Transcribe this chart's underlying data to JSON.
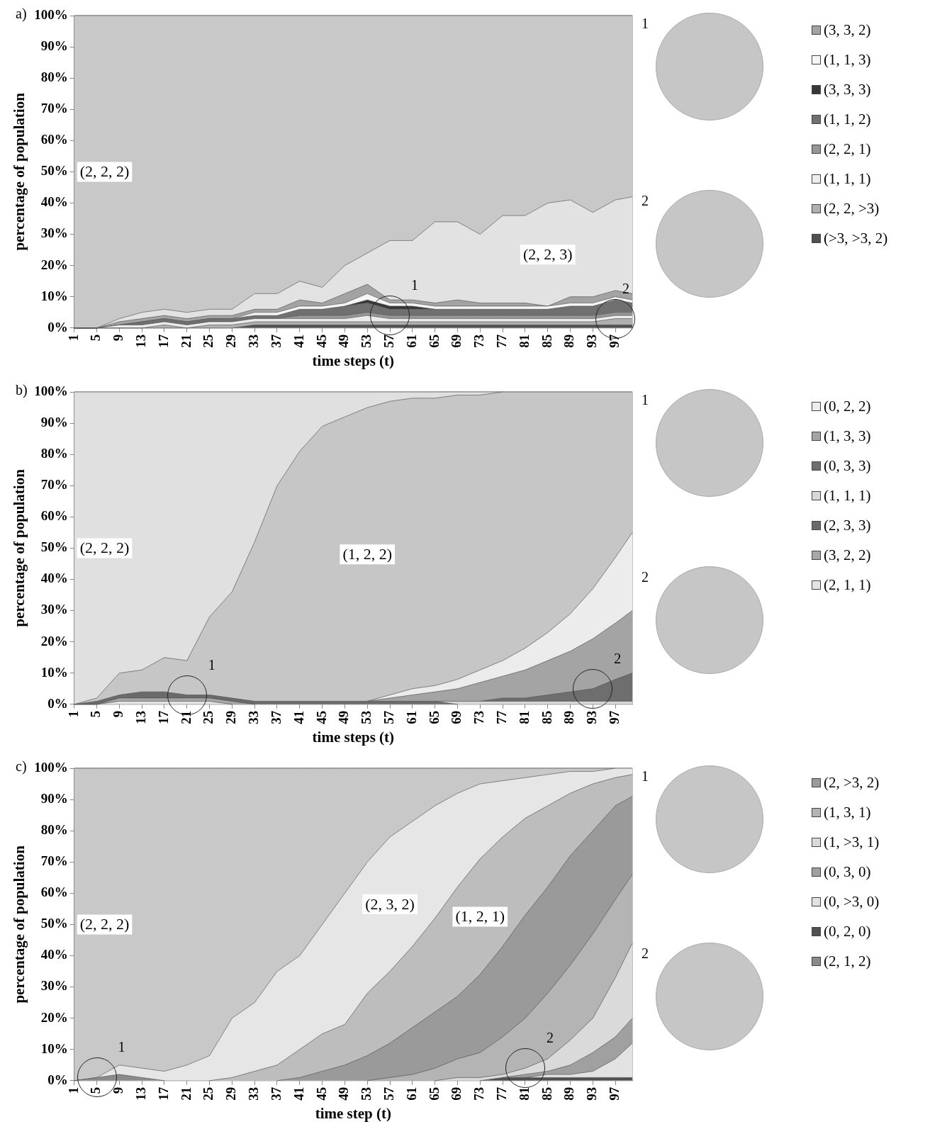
{
  "chart_data": [
    {
      "type": "area",
      "title": "a)",
      "xlabel": "time steps (t)",
      "ylabel": "percentage of population",
      "stacked": true,
      "legend": "right",
      "x": [
        1,
        5,
        9,
        13,
        17,
        21,
        25,
        29,
        33,
        37,
        41,
        45,
        49,
        53,
        57,
        61,
        65,
        69,
        73,
        77,
        81,
        85,
        89,
        93,
        97,
        100
      ],
      "xlim": [
        1,
        100
      ],
      "xticks": [
        1,
        5,
        9,
        13,
        17,
        21,
        25,
        29,
        33,
        37,
        41,
        45,
        49,
        53,
        57,
        61,
        65,
        69,
        73,
        77,
        81,
        85,
        89,
        93,
        97
      ],
      "ylim": [
        0,
        100
      ],
      "yticks": [
        {
          "value": 0,
          "label": "0%"
        },
        {
          "value": 10,
          "label": "10%"
        },
        {
          "value": 20,
          "label": "20%"
        },
        {
          "value": 30,
          "label": "30%"
        },
        {
          "value": 40,
          "label": "40%"
        },
        {
          "value": 50,
          "label": "50%"
        },
        {
          "value": 60,
          "label": "60%"
        },
        {
          "value": 70,
          "label": "70%"
        },
        {
          "value": 80,
          "label": "80%"
        },
        {
          "value": 90,
          "label": "90%"
        },
        {
          "value": 100,
          "label": "100%"
        }
      ],
      "annotations": [
        {
          "text": "1",
          "x": 57,
          "y": 4
        },
        {
          "text": "2",
          "x": 97,
          "y": 3
        }
      ],
      "series": [
        {
          "name": "(>3, >3, 2)",
          "color": "#505050",
          "values": [
            0,
            0,
            0,
            0,
            0,
            0,
            0,
            0,
            1,
            1,
            1,
            1,
            1,
            1,
            1,
            1,
            1,
            1,
            1,
            1,
            1,
            1,
            1,
            1,
            1,
            1
          ]
        },
        {
          "name": "(2, 2, >3)",
          "color": "#b0b0b0",
          "values": [
            0,
            0,
            0,
            0,
            1,
            0,
            1,
            1,
            1,
            1,
            1,
            1,
            1,
            1,
            1,
            1,
            1,
            1,
            1,
            1,
            1,
            1,
            1,
            1,
            2,
            2
          ]
        },
        {
          "name": "(1, 1, 1)",
          "color": "#ececec",
          "values": [
            0,
            0,
            1,
            1,
            1,
            1,
            1,
            1,
            1,
            1,
            1,
            1,
            1,
            2,
            1,
            1,
            1,
            1,
            1,
            1,
            1,
            1,
            1,
            1,
            1,
            1
          ]
        },
        {
          "name": "(2, 2, 1)",
          "color": "#969696",
          "values": [
            0,
            0,
            0,
            0,
            0,
            0,
            0,
            0,
            0,
            0,
            1,
            1,
            1,
            1,
            1,
            1,
            1,
            1,
            1,
            1,
            1,
            1,
            1,
            1,
            1,
            1
          ]
        },
        {
          "name": "(1, 1, 2)",
          "color": "#707070",
          "values": [
            0,
            0,
            0,
            1,
            1,
            1,
            1,
            1,
            1,
            1,
            2,
            2,
            3,
            3,
            2,
            2,
            2,
            2,
            2,
            2,
            2,
            2,
            3,
            3,
            4,
            3
          ]
        },
        {
          "name": "(3, 3, 3)",
          "color": "#383838",
          "values": [
            null,
            null,
            null,
            null,
            null,
            null,
            null,
            null,
            null,
            null,
            null,
            null,
            0,
            1,
            1,
            1,
            0,
            null,
            null,
            null,
            null,
            null,
            null,
            null,
            null,
            null
          ]
        },
        {
          "name": "(1, 1, 3)",
          "color": "#f6f6f6",
          "values": [
            0,
            0,
            0,
            0,
            0,
            0,
            0,
            0,
            1,
            1,
            1,
            1,
            1,
            2,
            1,
            1,
            1,
            1,
            1,
            1,
            1,
            1,
            1,
            1,
            1,
            1
          ]
        },
        {
          "name": "(3, 3, 2)",
          "color": "#a3a3a3",
          "values": [
            0,
            0,
            1,
            1,
            1,
            1,
            1,
            1,
            1,
            1,
            2,
            1,
            3,
            3,
            1,
            1,
            1,
            2,
            1,
            1,
            1,
            0,
            2,
            2,
            2,
            2
          ]
        },
        {
          "name": "(2, 2, 3)",
          "color": "#e2e2e2",
          "values": [
            0,
            0,
            1,
            2,
            2,
            2,
            2,
            2,
            5,
            5,
            6,
            5,
            9,
            10,
            19,
            19,
            26,
            25,
            22,
            28,
            28,
            33,
            31,
            27,
            29,
            31
          ]
        },
        {
          "name": "(2, 2, 2)",
          "color": "#c8c8c8",
          "values": [
            100,
            100,
            97,
            95,
            94,
            95,
            94,
            94,
            89,
            89,
            85,
            87,
            80,
            76,
            72,
            72,
            66,
            66,
            70,
            64,
            64,
            60,
            59,
            63,
            59,
            58
          ]
        }
      ]
    },
    {
      "type": "area",
      "title": "b)",
      "xlabel": "time steps (t)",
      "ylabel": "percentage of population",
      "stacked": true,
      "legend": "right",
      "x": [
        1,
        5,
        9,
        13,
        17,
        21,
        25,
        29,
        33,
        37,
        41,
        45,
        49,
        53,
        57,
        61,
        65,
        69,
        73,
        77,
        81,
        85,
        89,
        93,
        97,
        100
      ],
      "xlim": [
        1,
        100
      ],
      "xticks": [
        1,
        5,
        9,
        13,
        17,
        21,
        25,
        29,
        33,
        37,
        41,
        45,
        49,
        53,
        57,
        61,
        65,
        69,
        73,
        77,
        81,
        85,
        89,
        93,
        97
      ],
      "ylim": [
        0,
        100
      ],
      "yticks": [
        {
          "value": 0,
          "label": "0%"
        },
        {
          "value": 10,
          "label": "10%"
        },
        {
          "value": 20,
          "label": "20%"
        },
        {
          "value": 30,
          "label": "30%"
        },
        {
          "value": 40,
          "label": "40%"
        },
        {
          "value": 50,
          "label": "50%"
        },
        {
          "value": 60,
          "label": "60%"
        },
        {
          "value": 70,
          "label": "70%"
        },
        {
          "value": 80,
          "label": "80%"
        },
        {
          "value": 90,
          "label": "90%"
        },
        {
          "value": 100,
          "label": "100%"
        }
      ],
      "annotations": [
        {
          "text": "1",
          "x": 21,
          "y": 3
        },
        {
          "text": "2",
          "x": 93,
          "y": 5
        }
      ],
      "series": [
        {
          "name": "(2, 1, 1)",
          "color": "#e4e4e4",
          "values": [
            0,
            0,
            1,
            1,
            1,
            1,
            1,
            0,
            null,
            null,
            null,
            null,
            null,
            null,
            null,
            null,
            null,
            null,
            null,
            null,
            null,
            null,
            null,
            null,
            null,
            null
          ]
        },
        {
          "name": "(3, 2, 2)",
          "color": "#a8a8a8",
          "values": [
            0,
            0,
            1,
            1,
            1,
            1,
            1,
            1,
            0,
            null,
            null,
            null,
            null,
            null,
            null,
            null,
            null,
            null,
            null,
            null,
            null,
            null,
            null,
            null,
            null,
            null
          ]
        },
        {
          "name": "(2, 3, 3)",
          "color": "#6a6a6a",
          "values": [
            0,
            1,
            1,
            2,
            2,
            1,
            1,
            1,
            1,
            1,
            1,
            1,
            1,
            1,
            1,
            1,
            1,
            0,
            null,
            null,
            null,
            null,
            null,
            null,
            null,
            null
          ]
        },
        {
          "name": "(1, 1, 1)",
          "color": "#d8d8d8",
          "values": [
            null,
            null,
            null,
            null,
            null,
            null,
            null,
            null,
            null,
            null,
            null,
            null,
            null,
            null,
            null,
            null,
            0,
            1,
            1,
            1,
            1,
            1,
            1,
            1,
            1,
            1
          ]
        },
        {
          "name": "(0, 3, 3)",
          "color": "#6e6e6e",
          "values": [
            null,
            null,
            null,
            null,
            null,
            null,
            null,
            null,
            null,
            null,
            null,
            null,
            null,
            null,
            null,
            null,
            null,
            null,
            0,
            1,
            1,
            2,
            3,
            4,
            7,
            9
          ]
        },
        {
          "name": "(1, 3, 3)",
          "color": "#a4a4a4",
          "values": [
            null,
            null,
            null,
            null,
            null,
            null,
            null,
            null,
            null,
            null,
            null,
            null,
            null,
            0,
            1,
            2,
            3,
            4,
            6,
            7,
            9,
            11,
            13,
            16,
            18,
            20
          ]
        },
        {
          "name": "(0, 2, 2)",
          "color": "#ececec",
          "values": [
            null,
            null,
            null,
            null,
            null,
            null,
            null,
            null,
            null,
            null,
            null,
            null,
            null,
            0,
            1,
            2,
            2,
            3,
            4,
            5,
            7,
            9,
            12,
            16,
            21,
            25
          ]
        },
        {
          "name": "(1, 2, 2)",
          "color": "#c6c6c6",
          "values": [
            0,
            1,
            7,
            7,
            11,
            11,
            25,
            34,
            51,
            69,
            80,
            88,
            91,
            94,
            94,
            93,
            92,
            91,
            88,
            86,
            82,
            77,
            71,
            63,
            53,
            45
          ]
        },
        {
          "name": "(2, 2, 2)",
          "color": "#e0e0e0",
          "values": [
            100,
            98,
            90,
            89,
            85,
            86,
            72,
            64,
            48,
            30,
            19,
            11,
            8,
            5,
            3,
            2,
            2,
            1,
            1,
            0,
            null,
            null,
            null,
            null,
            null,
            null
          ]
        }
      ]
    },
    {
      "type": "area",
      "title": "c)",
      "xlabel": "time step (t)",
      "ylabel": "percentage of population",
      "stacked": true,
      "legend": "right",
      "x": [
        1,
        5,
        9,
        13,
        17,
        21,
        25,
        29,
        33,
        37,
        41,
        45,
        49,
        53,
        57,
        61,
        65,
        69,
        73,
        77,
        81,
        85,
        89,
        93,
        97,
        100
      ],
      "xlim": [
        1,
        100
      ],
      "xticks": [
        1,
        5,
        9,
        13,
        17,
        21,
        25,
        29,
        33,
        37,
        41,
        45,
        49,
        53,
        57,
        61,
        65,
        69,
        73,
        77,
        81,
        85,
        89,
        93,
        97
      ],
      "ylim": [
        0,
        100
      ],
      "yticks": [
        {
          "value": 0,
          "label": "0%"
        },
        {
          "value": 10,
          "label": "10%"
        },
        {
          "value": 20,
          "label": "20%"
        },
        {
          "value": 30,
          "label": "30%"
        },
        {
          "value": 40,
          "label": "40%"
        },
        {
          "value": 50,
          "label": "50%"
        },
        {
          "value": 60,
          "label": "60%"
        },
        {
          "value": 70,
          "label": "70%"
        },
        {
          "value": 80,
          "label": "80%"
        },
        {
          "value": 90,
          "label": "90%"
        },
        {
          "value": 100,
          "label": "100%"
        }
      ],
      "annotations": [
        {
          "text": "1",
          "x": 5,
          "y": 1
        },
        {
          "text": "2",
          "x": 81,
          "y": 4
        }
      ],
      "series": [
        {
          "name": "(2, 1, 2)",
          "color": "#8a8a8a",
          "values": [
            0,
            1,
            2,
            1,
            0,
            null,
            null,
            null,
            null,
            null,
            null,
            null,
            null,
            null,
            null,
            null,
            null,
            null,
            null,
            null,
            null,
            null,
            null,
            null,
            null,
            null
          ]
        },
        {
          "name": "(0, 2, 0)",
          "color": "#505050",
          "values": [
            null,
            null,
            null,
            null,
            null,
            null,
            null,
            null,
            null,
            null,
            null,
            null,
            null,
            null,
            null,
            null,
            null,
            null,
            0,
            1,
            1,
            1,
            1,
            1,
            1,
            1
          ]
        },
        {
          "name": "(0, >3, 0)",
          "color": "#e2e2e2",
          "values": [
            null,
            null,
            null,
            null,
            null,
            null,
            null,
            null,
            null,
            null,
            null,
            null,
            null,
            null,
            null,
            null,
            null,
            null,
            null,
            null,
            0,
            1,
            1,
            2,
            6,
            11
          ]
        },
        {
          "name": "(0, 3, 0)",
          "color": "#a0a0a0",
          "values": [
            null,
            null,
            null,
            null,
            null,
            null,
            null,
            null,
            null,
            null,
            null,
            null,
            null,
            null,
            null,
            null,
            null,
            null,
            null,
            0,
            1,
            1,
            3,
            6,
            7,
            8
          ]
        },
        {
          "name": "(1, >3, 1)",
          "color": "#dadada",
          "values": [
            null,
            null,
            null,
            null,
            null,
            null,
            null,
            null,
            null,
            null,
            null,
            null,
            null,
            null,
            null,
            null,
            0,
            1,
            1,
            1,
            2,
            4,
            8,
            11,
            19,
            24
          ]
        },
        {
          "name": "(1, 3, 1)",
          "color": "#b4b4b4",
          "values": [
            null,
            null,
            null,
            null,
            null,
            null,
            null,
            null,
            null,
            null,
            null,
            null,
            null,
            0,
            1,
            2,
            4,
            6,
            8,
            12,
            16,
            21,
            24,
            27,
            25,
            22
          ]
        },
        {
          "name": "(2, >3, 2)",
          "color": "#9a9a9a",
          "values": [
            null,
            null,
            null,
            null,
            null,
            null,
            null,
            null,
            null,
            0,
            1,
            3,
            5,
            8,
            11,
            15,
            18,
            20,
            25,
            29,
            33,
            34,
            35,
            33,
            30,
            25
          ]
        },
        {
          "name": "(1, 2, 1)",
          "color": "#bdbdbd",
          "values": [
            null,
            null,
            null,
            null,
            null,
            null,
            0,
            1,
            3,
            5,
            9,
            12,
            13,
            20,
            23,
            26,
            30,
            35,
            37,
            35,
            31,
            26,
            20,
            15,
            9,
            7
          ]
        },
        {
          "name": "(2, 3, 2)",
          "color": "#e6e6e6",
          "values": [
            0,
            0,
            3,
            3,
            3,
            5,
            8,
            19,
            22,
            30,
            30,
            35,
            42,
            42,
            43,
            40,
            36,
            30,
            24,
            18,
            13,
            10,
            7,
            4,
            3,
            2
          ]
        },
        {
          "name": "(2, 2, 2)",
          "color": "#c8c8c8",
          "values": [
            100,
            99,
            95,
            96,
            97,
            95,
            92,
            80,
            75,
            65,
            60,
            50,
            40,
            30,
            22,
            17,
            12,
            8,
            5,
            4,
            3,
            2,
            1,
            1,
            0,
            null
          ]
        }
      ]
    }
  ]
}
